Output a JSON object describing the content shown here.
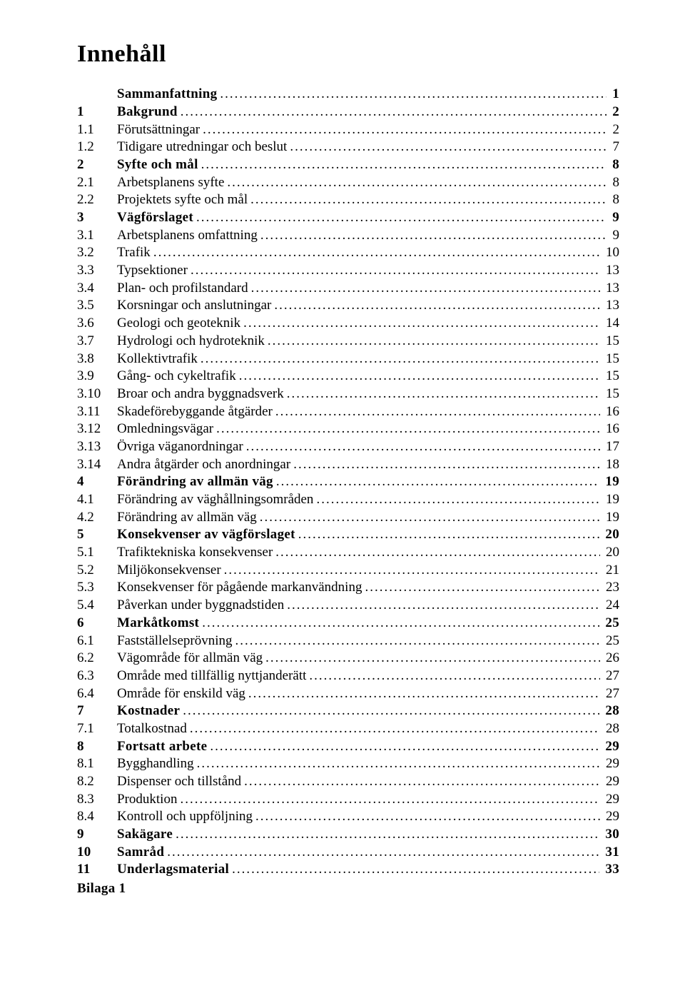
{
  "title": "Innehåll",
  "appendix": "Bilaga 1",
  "entries": [
    {
      "num": "",
      "label": "Sammanfattning",
      "page": "1",
      "level": 0
    },
    {
      "num": "1",
      "label": "Bakgrund",
      "page": "2",
      "level": 0
    },
    {
      "num": "1.1",
      "label": "Förutsättningar",
      "page": "2",
      "level": 1
    },
    {
      "num": "1.2",
      "label": "Tidigare utredningar och beslut",
      "page": "7",
      "level": 1
    },
    {
      "num": "2",
      "label": "Syfte och mål",
      "page": "8",
      "level": 0
    },
    {
      "num": "2.1",
      "label": "Arbetsplanens syfte",
      "page": "8",
      "level": 1
    },
    {
      "num": "2.2",
      "label": "Projektets syfte och mål",
      "page": "8",
      "level": 1
    },
    {
      "num": "3",
      "label": "Vägförslaget",
      "page": "9",
      "level": 0
    },
    {
      "num": "3.1",
      "label": "Arbetsplanens omfattning",
      "page": "9",
      "level": 1
    },
    {
      "num": "3.2",
      "label": "Trafik",
      "page": "10",
      "level": 1
    },
    {
      "num": "3.3",
      "label": "Typsektioner",
      "page": "13",
      "level": 1
    },
    {
      "num": "3.4",
      "label": "Plan- och profilstandard",
      "page": "13",
      "level": 1
    },
    {
      "num": "3.5",
      "label": "Korsningar och anslutningar",
      "page": "13",
      "level": 1
    },
    {
      "num": "3.6",
      "label": "Geologi och geoteknik",
      "page": "14",
      "level": 1
    },
    {
      "num": "3.7",
      "label": "Hydrologi och hydroteknik",
      "page": "15",
      "level": 1
    },
    {
      "num": "3.8",
      "label": "Kollektivtrafik",
      "page": "15",
      "level": 1
    },
    {
      "num": "3.9",
      "label": "Gång- och cykeltrafik",
      "page": "15",
      "level": 1
    },
    {
      "num": "3.10",
      "label": "Broar och andra byggnadsverk",
      "page": "15",
      "level": 1
    },
    {
      "num": "3.11",
      "label": "Skadeförebyggande åtgärder",
      "page": "16",
      "level": 1
    },
    {
      "num": "3.12",
      "label": "Omledningsvägar",
      "page": "16",
      "level": 1
    },
    {
      "num": "3.13",
      "label": "Övriga väganordningar",
      "page": "17",
      "level": 1
    },
    {
      "num": "3.14",
      "label": "Andra åtgärder och anordningar",
      "page": "18",
      "level": 1
    },
    {
      "num": "4",
      "label": "Förändring av allmän väg",
      "page": "19",
      "level": 0
    },
    {
      "num": "4.1",
      "label": "Förändring av väghållningsområden",
      "page": "19",
      "level": 1
    },
    {
      "num": "4.2",
      "label": "Förändring av allmän väg",
      "page": "19",
      "level": 1
    },
    {
      "num": "5",
      "label": "Konsekvenser av vägförslaget",
      "page": "20",
      "level": 0
    },
    {
      "num": "5.1",
      "label": "Trafiktekniska konsekvenser",
      "page": "20",
      "level": 1
    },
    {
      "num": "5.2",
      "label": "Miljökonsekvenser",
      "page": "21",
      "level": 1
    },
    {
      "num": "5.3",
      "label": "Konsekvenser för pågående markanvändning",
      "page": "23",
      "level": 1
    },
    {
      "num": "5.4",
      "label": "Påverkan under byggnadstiden",
      "page": "24",
      "level": 1
    },
    {
      "num": "6",
      "label": "Markåtkomst",
      "page": "25",
      "level": 0
    },
    {
      "num": "6.1",
      "label": "Fastställelseprövning",
      "page": "25",
      "level": 1
    },
    {
      "num": "6.2",
      "label": "Vägområde för allmän väg",
      "page": "26",
      "level": 1
    },
    {
      "num": "6.3",
      "label": "Område med tillfällig nyttjanderätt",
      "page": "27",
      "level": 1
    },
    {
      "num": "6.4",
      "label": "Område för enskild väg",
      "page": "27",
      "level": 1
    },
    {
      "num": "7",
      "label": "Kostnader",
      "page": "28",
      "level": 0
    },
    {
      "num": "7.1",
      "label": "Totalkostnad",
      "page": "28",
      "level": 1
    },
    {
      "num": "8",
      "label": "Fortsatt arbete",
      "page": "29",
      "level": 0
    },
    {
      "num": "8.1",
      "label": "Bygghandling",
      "page": "29",
      "level": 1
    },
    {
      "num": "8.2",
      "label": "Dispenser och tillstånd",
      "page": "29",
      "level": 1
    },
    {
      "num": "8.3",
      "label": "Produktion",
      "page": "29",
      "level": 1
    },
    {
      "num": "8.4",
      "label": "Kontroll och uppföljning",
      "page": "29",
      "level": 1
    },
    {
      "num": "9",
      "label": "Sakägare",
      "page": "30",
      "level": 0
    },
    {
      "num": "10",
      "label": "Samråd",
      "page": "31",
      "level": 0
    },
    {
      "num": "11",
      "label": "Underlagsmaterial",
      "page": "33",
      "level": 0
    }
  ]
}
